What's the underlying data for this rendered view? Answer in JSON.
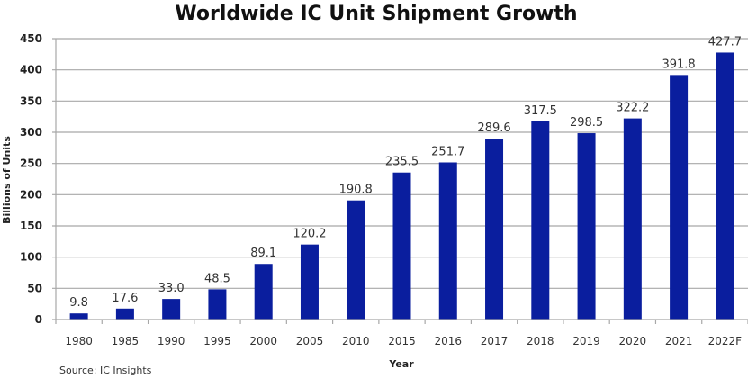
{
  "chart_data": {
    "type": "bar",
    "title": "Worldwide IC Unit Shipment Growth",
    "xlabel": "Year",
    "ylabel": "Billions of Units",
    "ylim": [
      0,
      450
    ],
    "yticks": [
      0,
      50,
      100,
      150,
      200,
      250,
      300,
      350,
      400,
      450
    ],
    "grid": true,
    "legend": "none",
    "bar_color": "#0a1e9e",
    "categories": [
      "1980",
      "1985",
      "1990",
      "1995",
      "2000",
      "2005",
      "2010",
      "2015",
      "2016",
      "2017",
      "2018",
      "2019",
      "2020",
      "2021",
      "2022F"
    ],
    "values": [
      9.8,
      17.6,
      33.0,
      48.5,
      89.1,
      120.2,
      190.8,
      235.5,
      251.7,
      289.6,
      317.5,
      298.5,
      322.2,
      391.8,
      427.7
    ],
    "data_labels": [
      "9.8",
      "17.6",
      "33.0",
      "48.5",
      "89.1",
      "120.2",
      "190.8",
      "235.5",
      "251.7",
      "289.6",
      "317.5",
      "298.5",
      "322.2",
      "391.8",
      "427.7"
    ],
    "source": "Source:  IC Insights"
  }
}
